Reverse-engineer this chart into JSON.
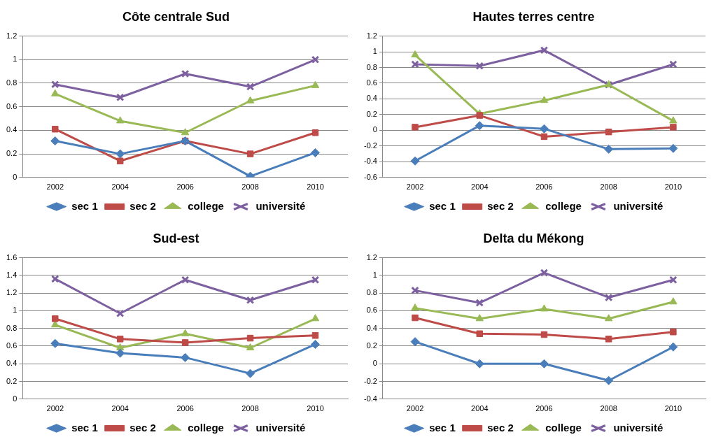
{
  "chart_data": [
    {
      "type": "line",
      "title": "Côte centrale Sud",
      "categories": [
        "2002",
        "2004",
        "2006",
        "2008",
        "2010"
      ],
      "ylim": [
        0,
        1.2
      ],
      "yticks": [
        0,
        0.2,
        0.4,
        0.6,
        0.8,
        1,
        1.2
      ],
      "grid": "y",
      "legend": "bottom",
      "series": [
        {
          "name": "sec 1",
          "color": "#4a7ebb",
          "marker": "diamond",
          "values": [
            0.31,
            0.2,
            0.31,
            0.01,
            0.21
          ]
        },
        {
          "name": "sec 2",
          "color": "#be4b48",
          "marker": "square",
          "values": [
            0.41,
            0.14,
            0.31,
            0.2,
            0.38
          ]
        },
        {
          "name": "college",
          "color": "#98b954",
          "marker": "triangle",
          "values": [
            0.71,
            0.48,
            0.38,
            0.65,
            0.78
          ]
        },
        {
          "name": "université",
          "color": "#7d60a0",
          "marker": "cross",
          "values": [
            0.79,
            0.68,
            0.88,
            0.77,
            1.0
          ]
        }
      ]
    },
    {
      "type": "line",
      "title": "Hautes terres centre",
      "categories": [
        "2002",
        "2004",
        "2006",
        "2008",
        "2010"
      ],
      "ylim": [
        -0.6,
        1.2
      ],
      "yticks": [
        -0.6,
        -0.4,
        -0.2,
        0,
        0.2,
        0.4,
        0.6,
        0.8,
        1,
        1.2
      ],
      "grid": "y",
      "legend": "bottom",
      "series": [
        {
          "name": "sec 1",
          "color": "#4a7ebb",
          "marker": "diamond",
          "values": [
            -0.39,
            0.06,
            0.02,
            -0.24,
            -0.23
          ]
        },
        {
          "name": "sec 2",
          "color": "#be4b48",
          "marker": "square",
          "values": [
            0.04,
            0.19,
            -0.08,
            -0.02,
            0.04
          ]
        },
        {
          "name": "college",
          "color": "#98b954",
          "marker": "triangle",
          "values": [
            0.96,
            0.21,
            0.38,
            0.58,
            0.12
          ]
        },
        {
          "name": "université",
          "color": "#7d60a0",
          "marker": "cross",
          "values": [
            0.84,
            0.82,
            1.02,
            0.58,
            0.84
          ]
        }
      ]
    },
    {
      "type": "line",
      "title": "Sud-est",
      "categories": [
        "2002",
        "2004",
        "2006",
        "2008",
        "2010"
      ],
      "ylim": [
        0,
        1.6
      ],
      "yticks": [
        0,
        0.2,
        0.4,
        0.6,
        0.8,
        1,
        1.2,
        1.4,
        1.6
      ],
      "grid": "y",
      "legend": "bottom",
      "series": [
        {
          "name": "sec 1",
          "color": "#4a7ebb",
          "marker": "diamond",
          "values": [
            0.63,
            0.52,
            0.47,
            0.29,
            0.62
          ]
        },
        {
          "name": "sec 2",
          "color": "#be4b48",
          "marker": "square",
          "values": [
            0.91,
            0.68,
            0.64,
            0.69,
            0.72
          ]
        },
        {
          "name": "college",
          "color": "#98b954",
          "marker": "triangle",
          "values": [
            0.84,
            0.58,
            0.74,
            0.58,
            0.91
          ]
        },
        {
          "name": "université",
          "color": "#7d60a0",
          "marker": "cross",
          "values": [
            1.36,
            0.97,
            1.35,
            1.12,
            1.35
          ]
        }
      ]
    },
    {
      "type": "line",
      "title": "Delta du Mékong",
      "categories": [
        "2002",
        "2004",
        "2006",
        "2008",
        "2010"
      ],
      "ylim": [
        -0.4,
        1.2
      ],
      "yticks": [
        -0.4,
        -0.2,
        0,
        0.2,
        0.4,
        0.6,
        0.8,
        1,
        1.2
      ],
      "grid": "y",
      "legend": "bottom",
      "series": [
        {
          "name": "sec 1",
          "color": "#4a7ebb",
          "marker": "diamond",
          "values": [
            0.25,
            0,
            0,
            -0.19,
            0.19
          ]
        },
        {
          "name": "sec 2",
          "color": "#be4b48",
          "marker": "square",
          "values": [
            0.52,
            0.34,
            0.33,
            0.28,
            0.36
          ]
        },
        {
          "name": "college",
          "color": "#98b954",
          "marker": "triangle",
          "values": [
            0.63,
            0.51,
            0.62,
            0.51,
            0.7
          ]
        },
        {
          "name": "université",
          "color": "#7d60a0",
          "marker": "cross",
          "values": [
            0.83,
            0.69,
            1.03,
            0.75,
            0.95
          ]
        }
      ]
    }
  ]
}
